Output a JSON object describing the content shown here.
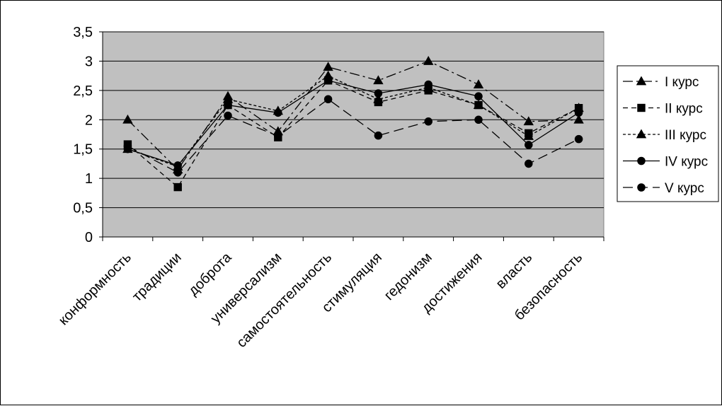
{
  "chart_data": {
    "type": "line",
    "title": "",
    "xlabel": "",
    "ylabel": "",
    "categories": [
      "конформность",
      "традиции",
      "доброта",
      "универсализм",
      "самостоятельность",
      "стимуляция",
      "гедонизм",
      "достижения",
      "власть",
      "безопасность"
    ],
    "ylim": [
      0,
      3.5
    ],
    "yticks": [
      0,
      0.5,
      1,
      1.5,
      2,
      2.5,
      3,
      3.5
    ],
    "ytick_labels": [
      "0",
      "0,5",
      "1",
      "1,5",
      "2",
      "2,5",
      "3",
      "3,5"
    ],
    "grid": "horizontal",
    "plot_background": "#c0c0c0",
    "legend_position": "right",
    "series": [
      {
        "name": "I курс",
        "marker": "triangle",
        "dash": "long-dash-dot",
        "color": "#000000",
        "values": [
          2.0,
          1.15,
          2.4,
          1.8,
          2.9,
          2.67,
          3.0,
          2.6,
          1.97,
          2.0
        ]
      },
      {
        "name": "II курс",
        "marker": "square",
        "dash": "dash",
        "color": "#000000",
        "values": [
          1.58,
          0.85,
          2.25,
          1.7,
          2.67,
          2.3,
          2.5,
          2.25,
          1.77,
          2.2
        ]
      },
      {
        "name": "III курс",
        "marker": "triangle",
        "dash": "short-dash",
        "color": "#000000",
        "values": [
          1.5,
          1.2,
          2.35,
          2.15,
          2.75,
          2.35,
          2.55,
          2.25,
          1.72,
          2.2
        ]
      },
      {
        "name": "IV курс",
        "marker": "circle",
        "dash": "solid",
        "color": "#000000",
        "values": [
          1.5,
          1.22,
          2.25,
          2.12,
          2.67,
          2.45,
          2.6,
          2.4,
          1.57,
          2.12
        ]
      },
      {
        "name": "V курс",
        "marker": "circle",
        "dash": "long-dash",
        "color": "#000000",
        "values": [
          1.55,
          1.1,
          2.07,
          1.72,
          2.35,
          1.73,
          1.97,
          2.0,
          1.25,
          1.67
        ]
      }
    ]
  }
}
